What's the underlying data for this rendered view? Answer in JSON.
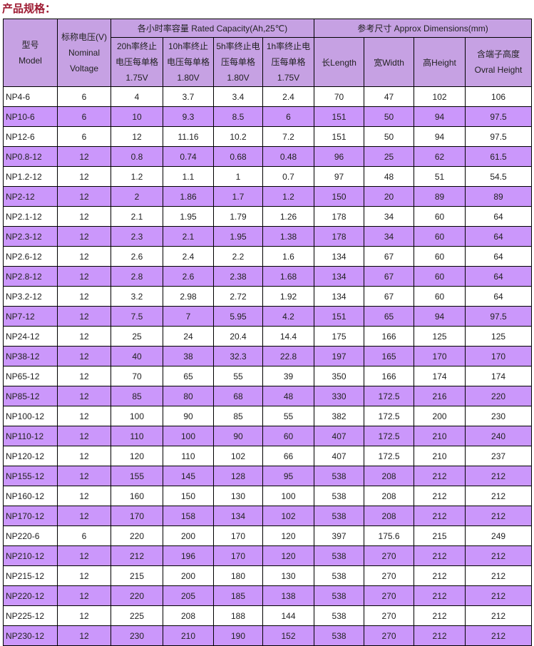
{
  "page": {
    "title": "产品规格："
  },
  "colors": {
    "title": "#9e1b32",
    "header_bg": "#c6a1e3",
    "row_alt_bg": "#cb97fb",
    "row_bg": "#ffffff",
    "border": "#000000",
    "text": "#222222"
  },
  "table": {
    "group_headers": {
      "capacity": "各小时率容量 Rated Capacity(Ah,25℃)",
      "dimensions": "参考尺寸 Approx Dimensions(mm)"
    },
    "column_headers": {
      "model": [
        "型号",
        "Model"
      ],
      "voltage": [
        "标称电压(V)",
        "Nominal",
        "Voltage"
      ],
      "cap_20h": [
        "20h率终止",
        "电压每单格",
        "1.75V"
      ],
      "cap_10h": [
        "10h率终止",
        "电压每单格",
        "1.80V"
      ],
      "cap_5h": [
        "5h率终止电",
        "压每单格",
        "1.80V"
      ],
      "cap_1h": [
        "1h率终止电",
        "压每单格",
        "1.75V"
      ],
      "length": [
        "长Length"
      ],
      "width": [
        "宽Width"
      ],
      "height": [
        "高Height"
      ],
      "overall_height": [
        "含端子高度",
        "Ovral Height"
      ]
    },
    "rows": [
      [
        "NP4-6",
        "6",
        "4",
        "3.7",
        "3.4",
        "2.4",
        "70",
        "47",
        "102",
        "106"
      ],
      [
        "NP10-6",
        "6",
        "10",
        "9.3",
        "8.5",
        "6",
        "151",
        "50",
        "94",
        "97.5"
      ],
      [
        "NP12-6",
        "6",
        "12",
        "11.16",
        "10.2",
        "7.2",
        "151",
        "50",
        "94",
        "97.5"
      ],
      [
        "NP0.8-12",
        "12",
        "0.8",
        "0.74",
        "0.68",
        "0.48",
        "96",
        "25",
        "62",
        "61.5"
      ],
      [
        "NP1.2-12",
        "12",
        "1.2",
        "1.1",
        "1",
        "0.7",
        "97",
        "48",
        "51",
        "54.5"
      ],
      [
        "NP2-12",
        "12",
        "2",
        "1.86",
        "1.7",
        "1.2",
        "150",
        "20",
        "89",
        "89"
      ],
      [
        "NP2.1-12",
        "12",
        "2.1",
        "1.95",
        "1.79",
        "1.26",
        "178",
        "34",
        "60",
        "64"
      ],
      [
        "NP2.3-12",
        "12",
        "2.3",
        "2.1",
        "1.95",
        "1.38",
        "178",
        "34",
        "60",
        "64"
      ],
      [
        "NP2.6-12",
        "12",
        "2.6",
        "2.4",
        "2.2",
        "1.6",
        "134",
        "67",
        "60",
        "64"
      ],
      [
        "NP2.8-12",
        "12",
        "2.8",
        "2.6",
        "2.38",
        "1.68",
        "134",
        "67",
        "60",
        "64"
      ],
      [
        "NP3.2-12",
        "12",
        "3.2",
        "2.98",
        "2.72",
        "1.92",
        "134",
        "67",
        "60",
        "64"
      ],
      [
        "NP7-12",
        "12",
        "7.5",
        "7",
        "5.95",
        "4.2",
        "151",
        "65",
        "94",
        "97.5"
      ],
      [
        "NP24-12",
        "12",
        "25",
        "24",
        "20.4",
        "14.4",
        "175",
        "166",
        "125",
        "125"
      ],
      [
        "NP38-12",
        "12",
        "40",
        "38",
        "32.3",
        "22.8",
        "197",
        "165",
        "170",
        "170"
      ],
      [
        "NP65-12",
        "12",
        "70",
        "65",
        "55",
        "39",
        "350",
        "166",
        "174",
        "174"
      ],
      [
        "NP85-12",
        "12",
        "85",
        "80",
        "68",
        "48",
        "330",
        "172.5",
        "216",
        "220"
      ],
      [
        "NP100-12",
        "12",
        "100",
        "90",
        "85",
        "55",
        "382",
        "172.5",
        "200",
        "230"
      ],
      [
        "NP110-12",
        "12",
        "110",
        "100",
        "90",
        "60",
        "407",
        "172.5",
        "210",
        "240"
      ],
      [
        "NP120-12",
        "12",
        "120",
        "110",
        "102",
        "66",
        "407",
        "172.5",
        "210",
        "237"
      ],
      [
        "NP155-12",
        "12",
        "155",
        "145",
        "128",
        "95",
        "538",
        "208",
        "212",
        "212"
      ],
      [
        "NP160-12",
        "12",
        "160",
        "150",
        "130",
        "100",
        "538",
        "208",
        "212",
        "212"
      ],
      [
        "NP170-12",
        "12",
        "170",
        "158",
        "134",
        "102",
        "538",
        "208",
        "212",
        "212"
      ],
      [
        "NP220-6",
        "6",
        "220",
        "200",
        "170",
        "120",
        "397",
        "175.6",
        "215",
        "249"
      ],
      [
        "NP210-12",
        "12",
        "212",
        "196",
        "170",
        "120",
        "538",
        "270",
        "212",
        "212"
      ],
      [
        "NP215-12",
        "12",
        "215",
        "200",
        "180",
        "130",
        "538",
        "270",
        "212",
        "212"
      ],
      [
        "NP220-12",
        "12",
        "220",
        "205",
        "185",
        "138",
        "538",
        "270",
        "212",
        "212"
      ],
      [
        "NP225-12",
        "12",
        "225",
        "208",
        "188",
        "144",
        "538",
        "270",
        "212",
        "212"
      ],
      [
        "NP230-12",
        "12",
        "230",
        "210",
        "190",
        "152",
        "538",
        "270",
        "212",
        "212"
      ]
    ]
  }
}
